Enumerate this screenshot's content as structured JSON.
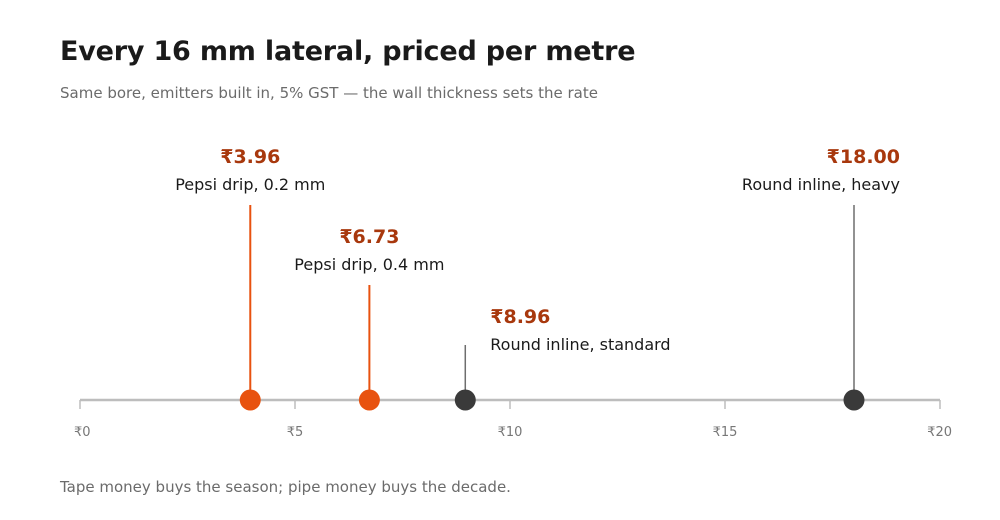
{
  "header": {
    "title": "Every 16 mm lateral, priced per metre",
    "subtitle": "Same bore, emitters built in, 5% GST — the wall thickness sets the rate"
  },
  "footer": {
    "note": "Tape money buys the season; pipe money buys the decade."
  },
  "colors": {
    "tape": "#e8520f",
    "pipe": "#3a3a3a",
    "price_text": "#a8380d",
    "axis": "#bdbdbd"
  },
  "chart_data": {
    "type": "scatter",
    "title": "Every 16 mm lateral, priced per metre",
    "subtitle": "Same bore, emitters built in, 5% GST — the wall thickness sets the rate",
    "xlabel": "",
    "ylabel": "",
    "xlim": [
      0,
      20
    ],
    "ticks": [
      {
        "value": 0,
        "label": "₹0"
      },
      {
        "value": 5,
        "label": "₹5"
      },
      {
        "value": 10,
        "label": "₹10"
      },
      {
        "value": 15,
        "label": "₹15"
      },
      {
        "value": 20,
        "label": "₹20"
      }
    ],
    "points": [
      {
        "name": "Pepsi drip, 0.2 mm",
        "value": 3.96,
        "price_label": "₹3.96",
        "kind": "tape"
      },
      {
        "name": "Pepsi drip, 0.4 mm",
        "value": 6.73,
        "price_label": "₹6.73",
        "kind": "tape"
      },
      {
        "name": "Round inline, standard",
        "value": 8.96,
        "price_label": "₹8.96",
        "kind": "pipe"
      },
      {
        "name": "Round inline, heavy",
        "value": 18.0,
        "price_label": "₹18.00",
        "kind": "pipe"
      }
    ]
  }
}
